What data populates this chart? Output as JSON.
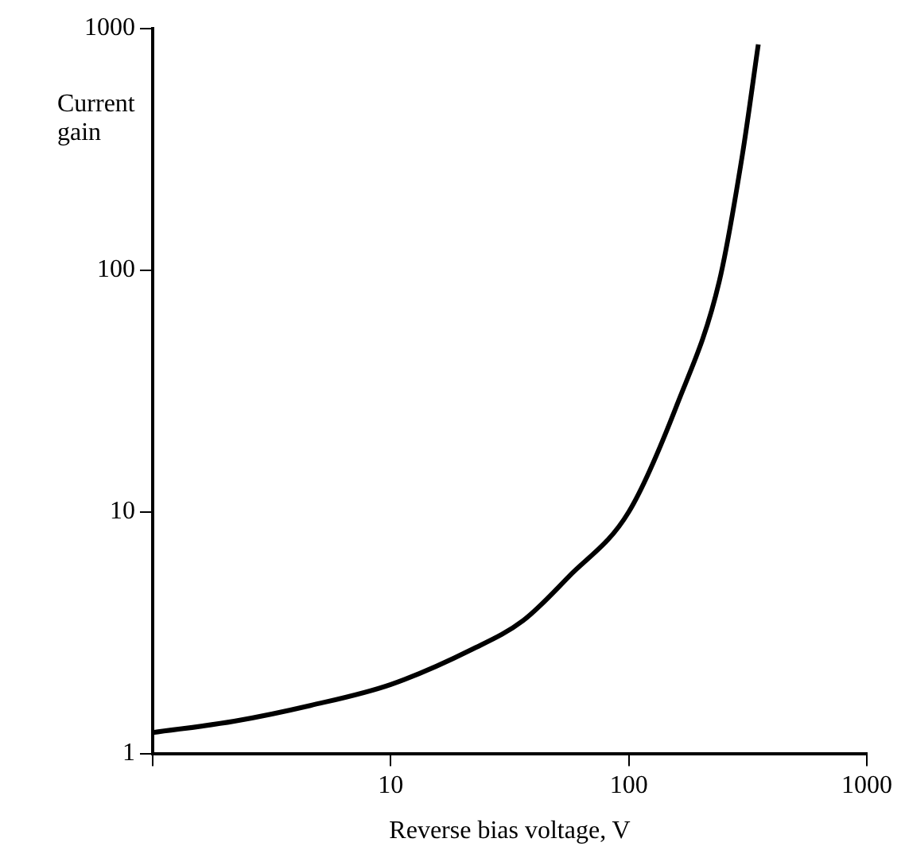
{
  "chart_data": {
    "type": "line",
    "xlabel": "Reverse bias voltage, V",
    "ylabel": "Current gain",
    "log": "xy",
    "grid": false,
    "marker": "none",
    "line_style": "solid",
    "legend": false,
    "xlim": [
      1,
      1000
    ],
    "xticks": [
      {
        "value": 1,
        "label": null
      },
      10,
      100,
      1000
    ],
    "ylim": [
      1,
      1000
    ],
    "yticks": [
      1,
      10,
      100,
      1000
    ],
    "series": [
      {
        "color": "#000000",
        "x": [
          1,
          2.2,
          4.6,
          10,
          22,
          36,
          56,
          100,
          160,
          240,
          300,
          350
        ],
        "values": [
          1.22,
          1.36,
          1.58,
          1.93,
          2.7,
          3.55,
          5.4,
          10,
          28,
          90,
          300,
          860
        ]
      }
    ]
  }
}
